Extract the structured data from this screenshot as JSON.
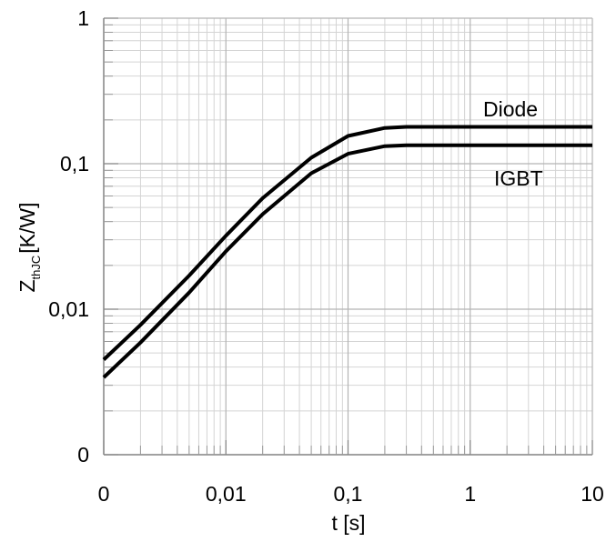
{
  "chart_data": {
    "type": "line",
    "title": "",
    "xlabel": "t [s]",
    "ylabel": {
      "main": "Z",
      "subscript": "thJC",
      "unit": "[K/W]"
    },
    "x_scale": "log",
    "y_scale": "log",
    "x_ticks": [
      {
        "value": 0.001,
        "label": "0"
      },
      {
        "value": 0.01,
        "label": "0,01"
      },
      {
        "value": 0.1,
        "label": "0,1"
      },
      {
        "value": 1,
        "label": "1"
      },
      {
        "value": 10,
        "label": "10"
      }
    ],
    "y_ticks": [
      {
        "value": 0.001,
        "label": "0"
      },
      {
        "value": 0.01,
        "label": "0,01"
      },
      {
        "value": 0.1,
        "label": "0,1"
      },
      {
        "value": 1,
        "label": "1"
      }
    ],
    "xlim": [
      0.001,
      10
    ],
    "ylim": [
      0.001,
      1
    ],
    "grid": true,
    "series": [
      {
        "name": "Diode",
        "color": "#000000",
        "x": [
          0.001,
          0.002,
          0.005,
          0.01,
          0.02,
          0.05,
          0.1,
          0.2,
          0.3,
          0.5,
          1,
          2,
          5,
          10
        ],
        "y": [
          0.0045,
          0.0078,
          0.017,
          0.032,
          0.058,
          0.11,
          0.155,
          0.176,
          0.179,
          0.179,
          0.179,
          0.179,
          0.179,
          0.179
        ]
      },
      {
        "name": "IGBT",
        "color": "#000000",
        "x": [
          0.001,
          0.002,
          0.005,
          0.01,
          0.02,
          0.05,
          0.1,
          0.2,
          0.3,
          0.5,
          1,
          2,
          5,
          10
        ],
        "y": [
          0.0034,
          0.0059,
          0.013,
          0.025,
          0.045,
          0.086,
          0.117,
          0.132,
          0.134,
          0.134,
          0.134,
          0.134,
          0.134,
          0.134
        ]
      }
    ]
  }
}
